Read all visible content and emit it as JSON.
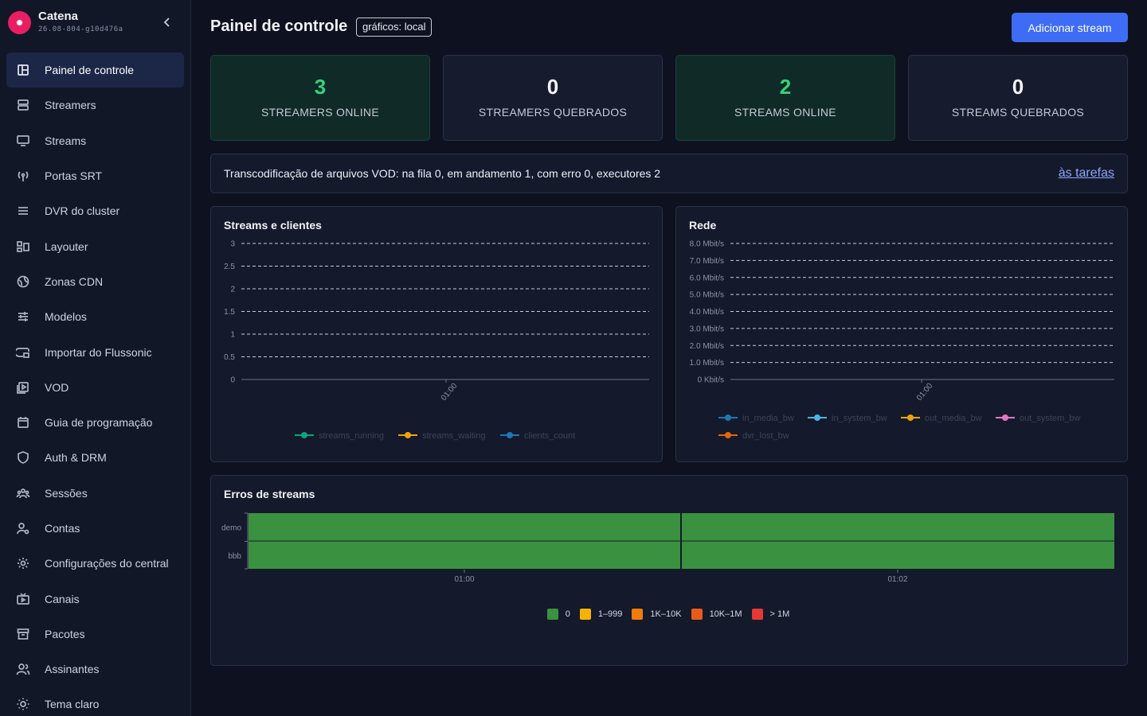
{
  "brand": {
    "name": "Catena",
    "version": "26.08-804-g10d476a"
  },
  "sidebar": {
    "items": [
      {
        "label": "Painel de controle",
        "icon": "dashboard-icon",
        "active": true
      },
      {
        "label": "Streamers",
        "icon": "server-icon"
      },
      {
        "label": "Streams",
        "icon": "monitor-icon"
      },
      {
        "label": "Portas SRT",
        "icon": "antenna-icon"
      },
      {
        "label": "DVR do cluster",
        "icon": "storage-icon"
      },
      {
        "label": "Layouter",
        "icon": "layout-icon"
      },
      {
        "label": "Zonas CDN",
        "icon": "globe-icon"
      },
      {
        "label": "Modelos",
        "icon": "sliders-icon"
      },
      {
        "label": "Importar do Flussonic",
        "icon": "import-icon"
      },
      {
        "label": "VOD",
        "icon": "video-file-icon"
      },
      {
        "label": "Guia de programação",
        "icon": "calendar-icon"
      },
      {
        "label": "Auth & DRM",
        "icon": "shield-icon"
      },
      {
        "label": "Sessões",
        "icon": "users-group-icon"
      },
      {
        "label": "Contas",
        "icon": "user-settings-icon"
      },
      {
        "label": "Configurações do central",
        "icon": "gear-icon"
      },
      {
        "label": "Canais",
        "icon": "tv-icon"
      },
      {
        "label": "Pacotes",
        "icon": "archive-icon"
      },
      {
        "label": "Assinantes",
        "icon": "users-icon"
      },
      {
        "label": "Tema claro",
        "icon": "sun-icon"
      }
    ]
  },
  "header": {
    "title": "Painel de controle",
    "badge": "gráficos: local",
    "add_button": "Adicionar stream"
  },
  "stats": [
    {
      "value": "3",
      "label": "STREAMERS ONLINE",
      "ok": true
    },
    {
      "value": "0",
      "label": "STREAMERS QUEBRADOS",
      "ok": false
    },
    {
      "value": "2",
      "label": "STREAMS ONLINE",
      "ok": true
    },
    {
      "value": "0",
      "label": "STREAMS QUEBRADOS",
      "ok": false
    }
  ],
  "vod": {
    "text": "Transcodificação de arquivos VOD: na fila 0, em andamento 1, com erro 0, executores 2",
    "link": "às tarefas"
  },
  "charts": {
    "streams_clients": {
      "title": "Streams e clientes",
      "yticks": [
        "0",
        "0.5",
        "1",
        "1.5",
        "2",
        "2.5",
        "3"
      ],
      "xtick": "01:00",
      "legend": [
        {
          "name": "streams_running",
          "color": "#10a37f"
        },
        {
          "name": "streams_waiting",
          "color": "#f0a30a"
        },
        {
          "name": "clients_count",
          "color": "#1f77b4"
        }
      ]
    },
    "network": {
      "title": "Rede",
      "yticks": [
        "0 Kbit/s",
        "1.0 Mbit/s",
        "2.0 Mbit/s",
        "3.0 Mbit/s",
        "4.0 Mbit/s",
        "5.0 Mbit/s",
        "6.0 Mbit/s",
        "7.0 Mbit/s",
        "8.0 Mbit/s"
      ],
      "xtick": "01:00",
      "legend": [
        {
          "name": "in_media_bw",
          "color": "#1f77b4"
        },
        {
          "name": "in_system_bw",
          "color": "#4fb3e8"
        },
        {
          "name": "out_media_bw",
          "color": "#f0a30a"
        },
        {
          "name": "out_system_bw",
          "color": "#e377c2"
        },
        {
          "name": "dvr_lost_bw",
          "color": "#e8640c"
        }
      ]
    },
    "errors": {
      "title": "Erros de streams",
      "rows": [
        "demo",
        "bbb"
      ],
      "xticks": [
        "01:00",
        "01:02"
      ],
      "cell_color": "#3a913f",
      "legend": [
        {
          "label": "0",
          "color": "#3a913f"
        },
        {
          "label": "1–999",
          "color": "#f5b301"
        },
        {
          "label": "1K–10K",
          "color": "#f07c0c"
        },
        {
          "label": "10K–1M",
          "color": "#ea5a1c"
        },
        {
          "label": "> 1M",
          "color": "#e53935"
        }
      ]
    }
  }
}
